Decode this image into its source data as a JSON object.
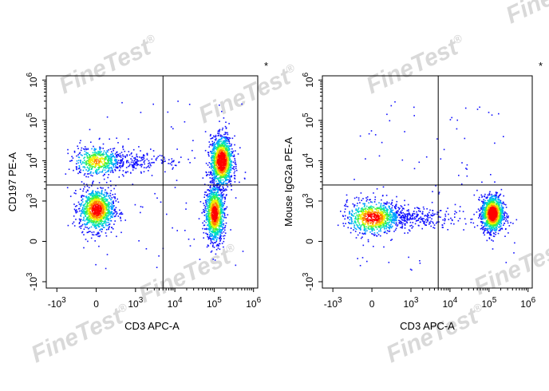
{
  "watermark": {
    "text": "FineTest",
    "mark": "®"
  },
  "chart_data": [
    {
      "type": "scatter",
      "subtype": "flow-cytometry-density-dot-plot",
      "xlabel": "CD3 APC-A",
      "ylabel": "CD197 PE-A",
      "corner_mark": "*",
      "x_scale": "biexponential",
      "y_scale": "biexponential",
      "x_ticks": [
        "-10^3",
        "0",
        "10^3",
        "10^4",
        "10^5",
        "10^6"
      ],
      "y_ticks": [
        "-10^3",
        "0",
        "10^3",
        "10^4",
        "10^5",
        "10^6"
      ],
      "xlim": [
        "-10^3",
        "10^6"
      ],
      "ylim": [
        "-10^3",
        "10^6"
      ],
      "gate": {
        "x": 5000,
        "y": 2500
      },
      "populations": [
        {
          "quadrant": "upper-left",
          "x_center": 0,
          "y_center": 10000,
          "relative_density": "medium"
        },
        {
          "quadrant": "lower-left",
          "x_center": 0,
          "y_center": 800,
          "relative_density": "high"
        },
        {
          "quadrant": "upper-right",
          "x_center": 150000,
          "y_center": 10000,
          "relative_density": "highest"
        },
        {
          "quadrant": "lower-right",
          "x_center": 100000,
          "y_center": 700,
          "relative_density": "high"
        }
      ],
      "grid": false,
      "legend": "none",
      "color_scale": [
        "#1010ff",
        "#00a0ff",
        "#00e0c0",
        "#40f040",
        "#f0f000",
        "#ff8000",
        "#ff0000"
      ]
    },
    {
      "type": "scatter",
      "subtype": "flow-cytometry-density-dot-plot",
      "xlabel": "CD3 APC-A",
      "ylabel": "Mouse IgG2a PE-A",
      "corner_mark": "*",
      "x_scale": "biexponential",
      "y_scale": "biexponential",
      "x_ticks": [
        "-10^3",
        "0",
        "10^3",
        "10^4",
        "10^5",
        "10^6"
      ],
      "y_ticks": [
        "-10^3",
        "0",
        "10^3",
        "10^4",
        "10^5",
        "10^6"
      ],
      "xlim": [
        "-10^3",
        "10^6"
      ],
      "ylim": [
        "-10^3",
        "10^6"
      ],
      "gate": {
        "x": 5000,
        "y": 2500
      },
      "populations": [
        {
          "quadrant": "lower-left",
          "x_center": 0,
          "y_center": 600,
          "relative_density": "high"
        },
        {
          "quadrant": "lower-right",
          "x_center": 120000,
          "y_center": 700,
          "relative_density": "highest"
        }
      ],
      "grid": false,
      "legend": "none",
      "color_scale": [
        "#1010ff",
        "#00a0ff",
        "#00e0c0",
        "#40f040",
        "#f0f000",
        "#ff8000",
        "#ff0000"
      ]
    }
  ]
}
